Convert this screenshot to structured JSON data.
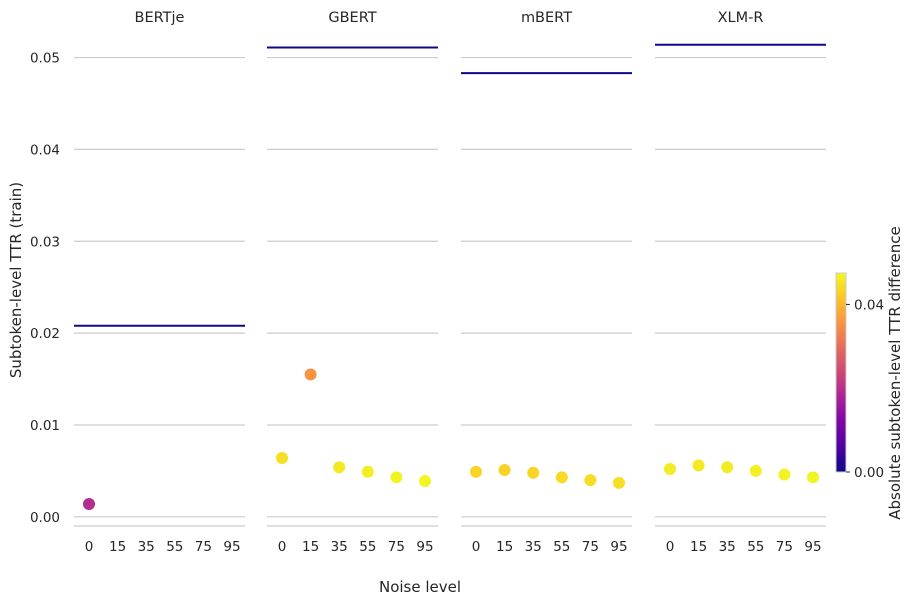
{
  "chart_data": {
    "type": "scatter",
    "xlabel": "Noise level",
    "ylabel": "Subtoken-level TTR (train)",
    "x_categories": [
      "0",
      "15",
      "35",
      "55",
      "75",
      "95"
    ],
    "ylim": [
      -0.001,
      0.053
    ],
    "yticks": [
      "0.00",
      "0.01",
      "0.02",
      "0.03",
      "0.04",
      "0.05"
    ],
    "grid": "horizontal",
    "colorbar": {
      "label": "Absolute subtoken-level TTR difference",
      "ticks": [
        "0.00",
        "0.04"
      ],
      "range": [
        0.0,
        0.0475
      ],
      "colormap": "plasma"
    },
    "panels": [
      {
        "title": "BERTje",
        "reference_line": 0.0208,
        "points": [
          {
            "x": "0",
            "y": 0.0014,
            "diff": 0.0194
          }
        ]
      },
      {
        "title": "GBERT",
        "reference_line": 0.0511,
        "points": [
          {
            "x": "0",
            "y": 0.0064,
            "diff": 0.0447
          },
          {
            "x": "15",
            "y": 0.0155,
            "diff": 0.0356
          },
          {
            "x": "35",
            "y": 0.0054,
            "diff": 0.0457
          },
          {
            "x": "55",
            "y": 0.0049,
            "diff": 0.0462
          },
          {
            "x": "75",
            "y": 0.0043,
            "diff": 0.0468
          },
          {
            "x": "95",
            "y": 0.0039,
            "diff": 0.0472
          }
        ]
      },
      {
        "title": "mBERT",
        "reference_line": 0.0483,
        "points": [
          {
            "x": "0",
            "y": 0.0049,
            "diff": 0.0434
          },
          {
            "x": "15",
            "y": 0.0051,
            "diff": 0.0432
          },
          {
            "x": "35",
            "y": 0.0048,
            "diff": 0.0435
          },
          {
            "x": "55",
            "y": 0.0043,
            "diff": 0.044
          },
          {
            "x": "75",
            "y": 0.004,
            "diff": 0.0443
          },
          {
            "x": "95",
            "y": 0.0037,
            "diff": 0.0446
          }
        ]
      },
      {
        "title": "XLM-R",
        "reference_line": 0.0514,
        "points": [
          {
            "x": "0",
            "y": 0.0052,
            "diff": 0.0462
          },
          {
            "x": "15",
            "y": 0.0056,
            "diff": 0.0458
          },
          {
            "x": "35",
            "y": 0.0054,
            "diff": 0.046
          },
          {
            "x": "55",
            "y": 0.005,
            "diff": 0.0464
          },
          {
            "x": "75",
            "y": 0.0046,
            "diff": 0.0468
          },
          {
            "x": "95",
            "y": 0.0043,
            "diff": 0.0471
          }
        ]
      }
    ],
    "colors": {
      "reference_line": "#0d0887",
      "grid": "#cccccc",
      "text": "#262626"
    }
  }
}
